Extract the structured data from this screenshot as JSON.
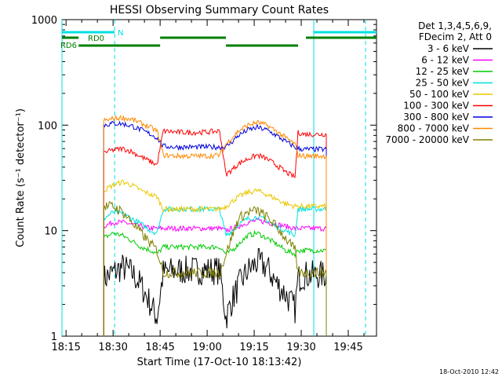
{
  "chart_data": {
    "type": "line",
    "title": "HESSI Observing Summary Count Rates",
    "xlabel": "Start Time (17-Oct-10 18:13:42)",
    "ylabel": "Count Rate (s⁻¹ detector⁻¹)",
    "y_scale": "log",
    "ylim": [
      1,
      1000
    ],
    "xlim": [
      "18:13:42",
      "19:54:00"
    ],
    "x_ticks": [
      "18:15",
      "18:30",
      "18:45",
      "19:00",
      "19:15",
      "19:30",
      "19:45"
    ],
    "y_ticks": [
      "1",
      "10",
      "100",
      "1000"
    ],
    "timestamp": "18-Oct-2010 12:42",
    "legend_header": [
      "Det 1,3,4,5,6,9,",
      "FDecim 2, Att 0"
    ],
    "legend_position": "right",
    "series": [
      {
        "name": "3 - 6 keV",
        "color": "#000000",
        "x": [
          "18:27",
          "18:30",
          "18:33",
          "18:36",
          "18:39",
          "18:42",
          "18:44",
          "18:46",
          "18:50",
          "18:55",
          "19:00",
          "19:04",
          "19:06",
          "19:08",
          "19:10",
          "19:13",
          "19:16",
          "19:19",
          "19:22",
          "19:25",
          "19:28",
          "19:29",
          "19:31",
          "19:33",
          "19:36",
          "19:38"
        ],
        "y": [
          3.5,
          4.0,
          4.5,
          4.0,
          3.0,
          2.0,
          1.5,
          4.0,
          4.2,
          4.2,
          4.2,
          4.2,
          1.5,
          2.2,
          3.0,
          4.2,
          5.0,
          4.5,
          3.2,
          2.5,
          1.8,
          3.5,
          3.8,
          3.8,
          3.8,
          3.8
        ]
      },
      {
        "name": "6 - 12 keV",
        "color": "#ff00ff",
        "x": [
          "18:27",
          "18:30",
          "18:33",
          "18:36",
          "18:39",
          "18:42",
          "18:44",
          "18:46",
          "18:50",
          "18:55",
          "19:00",
          "19:04",
          "19:06",
          "19:08",
          "19:10",
          "19:13",
          "19:16",
          "19:19",
          "19:22",
          "19:25",
          "19:28",
          "19:29",
          "19:31",
          "19:33",
          "19:36",
          "19:38"
        ],
        "y": [
          11,
          12,
          12,
          11.5,
          11,
          10.5,
          10.5,
          10.5,
          10.5,
          10.5,
          10.5,
          10.5,
          10,
          10.5,
          11,
          12,
          12.5,
          12,
          11.5,
          11,
          10.5,
          10.5,
          10.5,
          10.5,
          10.5,
          10.5
        ]
      },
      {
        "name": "12 - 25 keV",
        "color": "#00cc00",
        "x": [
          "18:27",
          "18:30",
          "18:33",
          "18:36",
          "18:39",
          "18:42",
          "18:44",
          "18:46",
          "18:50",
          "18:55",
          "19:00",
          "19:04",
          "19:06",
          "19:08",
          "19:10",
          "19:13",
          "19:16",
          "19:19",
          "19:22",
          "19:25",
          "19:28",
          "19:29",
          "19:31",
          "19:33",
          "19:36",
          "19:38"
        ],
        "y": [
          8.5,
          9.5,
          9.0,
          8.0,
          7.0,
          6.5,
          6.0,
          7.0,
          7.0,
          7.0,
          7.0,
          7.0,
          6.0,
          6.5,
          7.5,
          9.0,
          9.5,
          8.5,
          7.5,
          6.5,
          6.0,
          6.5,
          6.5,
          6.5,
          6.5,
          6.5
        ]
      },
      {
        "name": "25 - 50 keV",
        "color": "#00e0e0",
        "x": [
          "18:27",
          "18:30",
          "18:33",
          "18:36",
          "18:39",
          "18:42",
          "18:44",
          "18:46",
          "18:50",
          "18:55",
          "19:00",
          "19:04",
          "19:06",
          "19:08",
          "19:10",
          "19:13",
          "19:16",
          "19:19",
          "19:22",
          "19:25",
          "19:28",
          "19:29",
          "19:31",
          "19:33",
          "19:36",
          "19:38"
        ],
        "y": [
          13,
          15,
          14.5,
          13,
          11.5,
          10,
          9.5,
          16,
          16,
          16,
          16,
          16,
          9.0,
          10,
          11.5,
          13,
          13.5,
          12.5,
          11,
          10,
          9.0,
          16,
          16,
          16,
          16,
          16
        ]
      },
      {
        "name": "50 - 100 keV",
        "color": "#e8c800",
        "x": [
          "18:27",
          "18:30",
          "18:33",
          "18:36",
          "18:39",
          "18:42",
          "18:44",
          "18:46",
          "18:50",
          "18:55",
          "19:00",
          "19:04",
          "19:06",
          "19:08",
          "19:10",
          "19:13",
          "19:16",
          "19:19",
          "19:22",
          "19:25",
          "19:28",
          "19:29",
          "19:31",
          "19:33",
          "19:36",
          "19:38"
        ],
        "y": [
          24,
          27,
          29,
          27,
          24,
          22,
          21,
          16,
          16,
          16,
          16,
          16,
          17,
          19,
          21,
          23,
          24,
          22,
          20,
          18,
          17,
          17,
          17,
          17,
          17,
          17
        ]
      },
      {
        "name": "100 - 300 keV",
        "color": "#ff0000",
        "x": [
          "18:27",
          "18:30",
          "18:33",
          "18:36",
          "18:39",
          "18:42",
          "18:44",
          "18:46",
          "18:50",
          "18:55",
          "19:00",
          "19:04",
          "19:06",
          "19:08",
          "19:10",
          "19:13",
          "19:16",
          "19:19",
          "19:22",
          "19:25",
          "19:28",
          "19:29",
          "19:31",
          "19:33",
          "19:36",
          "19:38"
        ],
        "y": [
          55,
          58,
          60,
          56,
          50,
          45,
          42,
          88,
          86,
          85,
          86,
          88,
          34,
          38,
          43,
          48,
          52,
          48,
          42,
          36,
          32,
          85,
          82,
          82,
          82,
          82
        ]
      },
      {
        "name": "300 - 800 keV",
        "color": "#0000dd",
        "x": [
          "18:27",
          "18:30",
          "18:33",
          "18:36",
          "18:39",
          "18:42",
          "18:44",
          "18:46",
          "18:50",
          "18:55",
          "19:00",
          "19:04",
          "19:06",
          "19:08",
          "19:10",
          "19:13",
          "19:16",
          "19:19",
          "19:22",
          "19:25",
          "19:28",
          "19:29",
          "19:31",
          "19:33",
          "19:36",
          "19:38"
        ],
        "y": [
          100,
          104,
          103,
          98,
          90,
          82,
          76,
          63,
          62,
          62,
          62,
          62,
          62,
          70,
          80,
          90,
          95,
          90,
          80,
          70,
          62,
          60,
          59,
          59,
          59,
          59
        ]
      },
      {
        "name": "800 - 7000 keV",
        "color": "#ff8800",
        "x": [
          "18:27",
          "18:30",
          "18:33",
          "18:36",
          "18:39",
          "18:42",
          "18:44",
          "18:46",
          "18:50",
          "18:55",
          "19:00",
          "19:04",
          "19:06",
          "19:08",
          "19:10",
          "19:13",
          "19:16",
          "19:19",
          "19:22",
          "19:25",
          "19:28",
          "19:29",
          "19:31",
          "19:33",
          "19:36",
          "19:38"
        ],
        "y": [
          110,
          115,
          118,
          113,
          104,
          95,
          88,
          52,
          51,
          51,
          51,
          52,
          66,
          76,
          88,
          100,
          106,
          100,
          88,
          76,
          66,
          52,
          51,
          51,
          51,
          51
        ]
      },
      {
        "name": "7000 - 20000 keV",
        "color": "#808000",
        "x": [
          "18:27",
          "18:30",
          "18:33",
          "18:36",
          "18:39",
          "18:42",
          "18:44",
          "18:46",
          "18:50",
          "18:55",
          "19:00",
          "19:04",
          "19:06",
          "19:08",
          "19:10",
          "19:13",
          "19:16",
          "19:19",
          "19:22",
          "19:25",
          "19:28",
          "19:29",
          "19:31",
          "19:33",
          "19:36",
          "19:38"
        ],
        "y": [
          17,
          17,
          15,
          12,
          9.5,
          7.5,
          6.5,
          4.0,
          4.0,
          4.0,
          4.0,
          4.0,
          6.0,
          9.0,
          13,
          15,
          15.5,
          13.5,
          11,
          8.5,
          6.5,
          4.0,
          4.0,
          4.0,
          4.0,
          4.0
        ]
      }
    ],
    "flags": [
      {
        "label": "N",
        "color": "#00e0e0",
        "segments": [
          [
            "18:13:42",
            "18:30:30"
          ],
          [
            "19:34:00",
            "19:54:00"
          ]
        ]
      },
      {
        "label": "RD0",
        "color": "#008000",
        "segments": [
          [
            "18:13:42",
            "18:19:00"
          ],
          [
            "18:45:00",
            "19:06:00"
          ],
          [
            "19:31:30",
            "19:54:00"
          ]
        ]
      },
      {
        "label": "RD6",
        "color": "#008000",
        "segments": [
          [
            "18:19:00",
            "18:45:00"
          ],
          [
            "19:06:00",
            "19:29:00"
          ]
        ]
      }
    ],
    "vertical_lines": [
      {
        "x": "18:13:42",
        "style": "solid",
        "color": "#00e0e0"
      },
      {
        "x": "18:30:30",
        "style": "dashed",
        "color": "#00e0e0"
      },
      {
        "x": "19:34:00",
        "style": "solid",
        "color": "#00e0e0"
      },
      {
        "x": "19:50:30",
        "style": "dashed",
        "color": "#00e0e0"
      }
    ],
    "grid": false
  }
}
